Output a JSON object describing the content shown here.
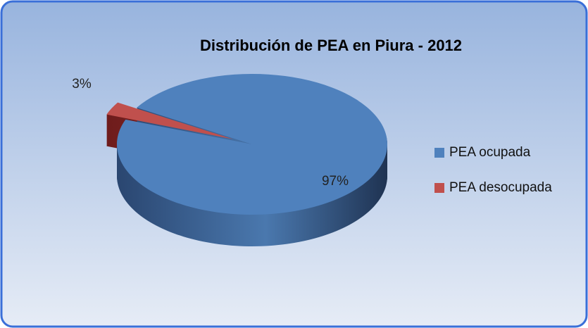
{
  "chart_data": {
    "type": "pie",
    "title": "Distribución de PEA en Piura - 2012",
    "categories": [
      "PEA ocupada",
      "PEA desocupada"
    ],
    "values": [
      97,
      3
    ],
    "value_labels": [
      "97%",
      "3%"
    ],
    "colors": [
      "#4f81bd",
      "#c0504d"
    ],
    "legend": "right"
  }
}
